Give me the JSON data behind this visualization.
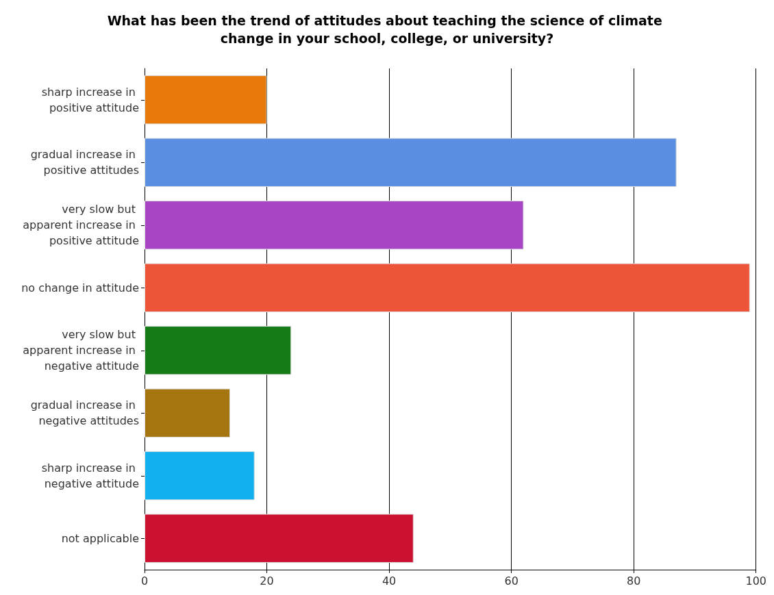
{
  "chart_data": {
    "type": "bar",
    "orientation": "horizontal",
    "title": "What has been the trend of attitudes about teaching the science of climate change in your school, college, or university?",
    "categories": [
      "sharp increase in positive attitude",
      "gradual increase in positive attitudes",
      "very slow but apparent increase in positive attitude",
      "no change in attitude",
      "very slow but apparent increase in negative attitude",
      "gradual increase in negative attitudes",
      "sharp increase in negative attitude",
      "not applicable"
    ],
    "values": [
      20,
      87,
      62,
      99,
      24,
      14,
      18,
      44
    ],
    "colors": [
      "#e87a0c",
      "#5a8ee0",
      "#a845c4",
      "#ee5538",
      "#167a16",
      "#a57510",
      "#12b0ee",
      "#cc1030"
    ],
    "xlim": [
      0,
      100
    ],
    "xticks": [
      0,
      20,
      40,
      60,
      80,
      100
    ],
    "grid": "x"
  }
}
